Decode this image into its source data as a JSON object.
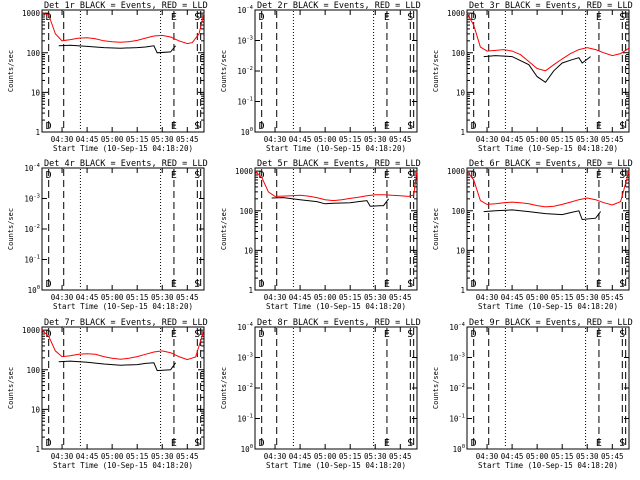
{
  "figure": {
    "axis_labels": {
      "y": "Counts/sec",
      "x": "Start Time (10-Sep-15 04:18:20)"
    },
    "time_ticks": [
      "04:30",
      "04:45",
      "05:00",
      "05:15",
      "05:30",
      "05:45"
    ],
    "event_colors": {
      "events": "#000000",
      "lld": "#ff0000"
    },
    "marker_labels": {
      "left": "D",
      "mid": "E",
      "right": "S"
    }
  },
  "chart_data": [
    {
      "type": "line",
      "title": "Det 1r BLACK = Events, RED = LLD",
      "x_range": [
        "04:18",
        "05:55"
      ],
      "y_scale": "log",
      "y_ticks": [
        "1",
        "10",
        "100",
        "1000"
      ],
      "y_range": [
        1,
        1200
      ],
      "series": [
        {
          "name": "BLACK = Events",
          "color": "#000000",
          "x": [
            "04:28",
            "04:35",
            "04:45",
            "04:55",
            "05:05",
            "05:15",
            "05:20",
            "05:25",
            "05:27",
            "05:35",
            "05:38"
          ],
          "y": [
            150,
            155,
            145,
            135,
            130,
            135,
            140,
            150,
            100,
            105,
            150
          ]
        },
        {
          "name": "RED = LLD",
          "color": "#ff0000",
          "x": [
            "04:18",
            "04:22",
            "04:26",
            "04:30",
            "04:35",
            "04:40",
            "04:45",
            "04:50",
            "04:55",
            "05:00",
            "05:05",
            "05:10",
            "05:15",
            "05:20",
            "05:25",
            "05:30",
            "05:35",
            "05:40",
            "05:45",
            "05:48",
            "05:52",
            "05:55"
          ],
          "y": [
            1000,
            900,
            300,
            200,
            215,
            235,
            240,
            225,
            200,
            190,
            185,
            190,
            205,
            235,
            265,
            275,
            250,
            200,
            170,
            180,
            300,
            1000
          ]
        }
      ],
      "markers": {
        "left": [
          "04:22",
          "04:31"
        ],
        "mid": [
          "05:37"
        ],
        "right": [
          "05:51",
          "05:53"
        ],
        "dotted": [
          "04:41",
          "05:29"
        ]
      }
    },
    {
      "type": "line",
      "title": "Det 2r BLACK = Events, RED = LLD",
      "x_range": [
        "04:18",
        "05:55"
      ],
      "y_scale": "log",
      "y_ticks": [
        "10^0",
        "10^-1",
        "10^-2",
        "10^-3",
        "10^-4"
      ],
      "y_range": [
        1,
        0.0001
      ],
      "series": [],
      "markers": {
        "left": [
          "04:22",
          "04:31"
        ],
        "mid": [
          "05:37"
        ],
        "right": [
          "05:51",
          "05:53"
        ],
        "dotted": [
          "04:41",
          "05:29"
        ]
      }
    },
    {
      "type": "line",
      "title": "Det 3r BLACK = Events, RED = LLD",
      "x_range": [
        "04:18",
        "05:55"
      ],
      "y_scale": "log",
      "y_ticks": [
        "1",
        "10",
        "100",
        "1000"
      ],
      "y_range": [
        1,
        1200
      ],
      "series": [
        {
          "name": "BLACK = Events",
          "color": "#000000",
          "x": [
            "04:28",
            "04:35",
            "04:45",
            "04:55",
            "05:00",
            "05:05",
            "05:10",
            "05:15",
            "05:20",
            "05:25",
            "05:27",
            "05:32"
          ],
          "y": [
            80,
            85,
            80,
            50,
            25,
            18,
            35,
            55,
            65,
            75,
            55,
            80
          ]
        },
        {
          "name": "RED = LLD",
          "color": "#ff0000",
          "x": [
            "04:18",
            "04:22",
            "04:26",
            "04:30",
            "04:35",
            "04:40",
            "04:45",
            "04:50",
            "04:55",
            "05:00",
            "05:05",
            "05:10",
            "05:15",
            "05:20",
            "05:25",
            "05:30",
            "05:35",
            "05:40",
            "05:45",
            "05:50",
            "05:55"
          ],
          "y": [
            1000,
            500,
            140,
            110,
            115,
            120,
            110,
            90,
            60,
            40,
            35,
            50,
            70,
            95,
            120,
            135,
            120,
            100,
            85,
            95,
            130
          ]
        }
      ],
      "markers": {
        "left": [
          "04:22",
          "04:31"
        ],
        "mid": [
          "05:37"
        ],
        "right": [
          "05:51",
          "05:53"
        ],
        "dotted": [
          "04:41",
          "05:29"
        ]
      }
    },
    {
      "type": "line",
      "title": "Det 4r BLACK = Events, RED = LLD",
      "x_range": [
        "04:18",
        "05:55"
      ],
      "y_scale": "log",
      "y_ticks": [
        "10^0",
        "10^-1",
        "10^-2",
        "10^-3",
        "10^-4"
      ],
      "y_range": [
        1,
        0.0001
      ],
      "series": [],
      "markers": {
        "left": [
          "04:22",
          "04:31"
        ],
        "mid": [
          "05:37"
        ],
        "right": [
          "05:51",
          "05:53"
        ],
        "dotted": [
          "04:41",
          "05:29"
        ]
      }
    },
    {
      "type": "line",
      "title": "Det 5r BLACK = Events, RED = LLD",
      "x_range": [
        "04:18",
        "05:55"
      ],
      "y_scale": "log",
      "y_ticks": [
        "1",
        "10",
        "100",
        "1000"
      ],
      "y_range": [
        1,
        1200
      ],
      "series": [
        {
          "name": "BLACK = Events",
          "color": "#000000",
          "x": [
            "04:28",
            "04:35",
            "04:45",
            "04:55",
            "05:00",
            "05:05",
            "05:15",
            "05:20",
            "05:25",
            "05:27",
            "05:35",
            "05:38"
          ],
          "y": [
            210,
            215,
            190,
            170,
            150,
            155,
            160,
            170,
            180,
            130,
            135,
            200
          ]
        },
        {
          "name": "RED = LLD",
          "color": "#ff0000",
          "x": [
            "04:18",
            "04:22",
            "04:26",
            "04:30",
            "04:35",
            "04:40",
            "04:45",
            "04:50",
            "04:55",
            "05:00",
            "05:05",
            "05:10",
            "05:15",
            "05:20",
            "05:25",
            "05:30",
            "05:35",
            "05:40",
            "05:45",
            "05:50",
            "05:53",
            "05:55"
          ],
          "y": [
            1000,
            700,
            300,
            230,
            235,
            240,
            245,
            235,
            215,
            190,
            180,
            190,
            205,
            220,
            240,
            255,
            255,
            245,
            240,
            230,
            250,
            1000
          ]
        }
      ],
      "markers": {
        "left": [
          "04:22",
          "04:31"
        ],
        "mid": [
          "05:37"
        ],
        "right": [
          "05:51",
          "05:53"
        ],
        "dotted": [
          "04:41",
          "05:29"
        ]
      }
    },
    {
      "type": "line",
      "title": "Det 6r BLACK = Events, RED = LLD",
      "x_range": [
        "04:18",
        "05:55"
      ],
      "y_scale": "log",
      "y_ticks": [
        "1",
        "10",
        "100",
        "1000"
      ],
      "y_range": [
        1,
        1200
      ],
      "series": [
        {
          "name": "BLACK = Events",
          "color": "#000000",
          "x": [
            "04:28",
            "04:35",
            "04:45",
            "04:55",
            "05:05",
            "05:15",
            "05:20",
            "05:25",
            "05:27",
            "05:35",
            "05:38"
          ],
          "y": [
            95,
            100,
            105,
            95,
            85,
            80,
            90,
            100,
            60,
            65,
            95
          ]
        },
        {
          "name": "RED = LLD",
          "color": "#ff0000",
          "x": [
            "04:18",
            "04:22",
            "04:26",
            "04:30",
            "04:35",
            "04:40",
            "04:45",
            "04:50",
            "04:55",
            "05:00",
            "05:05",
            "05:10",
            "05:15",
            "05:20",
            "05:25",
            "05:30",
            "05:35",
            "05:40",
            "05:45",
            "05:50",
            "05:55"
          ],
          "y": [
            1000,
            600,
            180,
            145,
            150,
            160,
            165,
            160,
            150,
            135,
            125,
            130,
            145,
            165,
            190,
            210,
            190,
            160,
            140,
            170,
            1000
          ]
        }
      ],
      "markers": {
        "left": [
          "04:22",
          "04:31"
        ],
        "mid": [
          "05:37"
        ],
        "right": [
          "05:51",
          "05:53"
        ],
        "dotted": [
          "04:41",
          "05:29"
        ]
      }
    },
    {
      "type": "line",
      "title": "Det 7r BLACK = Events, RED = LLD",
      "x_range": [
        "04:18",
        "05:55"
      ],
      "y_scale": "log",
      "y_ticks": [
        "1",
        "10",
        "100",
        "1000"
      ],
      "y_range": [
        1,
        1200
      ],
      "series": [
        {
          "name": "BLACK = Events",
          "color": "#000000",
          "x": [
            "04:28",
            "04:35",
            "04:45",
            "04:55",
            "05:05",
            "05:15",
            "05:20",
            "05:25",
            "05:27",
            "05:35",
            "05:38"
          ],
          "y": [
            160,
            165,
            155,
            140,
            130,
            135,
            145,
            150,
            95,
            100,
            150
          ]
        },
        {
          "name": "RED = LLD",
          "color": "#ff0000",
          "x": [
            "04:18",
            "04:22",
            "04:26",
            "04:30",
            "04:35",
            "04:40",
            "04:45",
            "04:50",
            "04:55",
            "05:00",
            "05:05",
            "05:10",
            "05:15",
            "05:20",
            "05:25",
            "05:30",
            "05:35",
            "05:40",
            "05:45",
            "05:50",
            "05:55"
          ],
          "y": [
            1000,
            700,
            300,
            215,
            225,
            245,
            255,
            245,
            215,
            195,
            185,
            195,
            215,
            245,
            280,
            300,
            270,
            215,
            180,
            210,
            1000
          ]
        }
      ],
      "markers": {
        "left": [
          "04:22",
          "04:31"
        ],
        "mid": [
          "05:37"
        ],
        "right": [
          "05:51",
          "05:53"
        ],
        "dotted": [
          "04:41",
          "05:29"
        ]
      }
    },
    {
      "type": "line",
      "title": "Det 8r BLACK = Events, RED = LLD",
      "x_range": [
        "04:18",
        "05:55"
      ],
      "y_scale": "log",
      "y_ticks": [
        "10^0",
        "10^-1",
        "10^-2",
        "10^-3",
        "10^-4"
      ],
      "y_range": [
        1,
        0.0001
      ],
      "series": [],
      "markers": {
        "left": [
          "04:22",
          "04:31"
        ],
        "mid": [
          "05:37"
        ],
        "right": [
          "05:51",
          "05:53"
        ],
        "dotted": [
          "04:41",
          "05:29"
        ]
      }
    },
    {
      "type": "line",
      "title": "Det 9r BLACK = Events, RED = LLD",
      "x_range": [
        "04:18",
        "05:55"
      ],
      "y_scale": "log",
      "y_ticks": [
        "10^0",
        "10^-1",
        "10^-2",
        "10^-3",
        "10^-4"
      ],
      "y_range": [
        1,
        0.0001
      ],
      "series": [],
      "markers": {
        "left": [
          "04:22",
          "04:31"
        ],
        "mid": [
          "05:37"
        ],
        "right": [
          "05:51",
          "05:53"
        ],
        "dotted": [
          "04:41",
          "05:29"
        ]
      }
    }
  ]
}
